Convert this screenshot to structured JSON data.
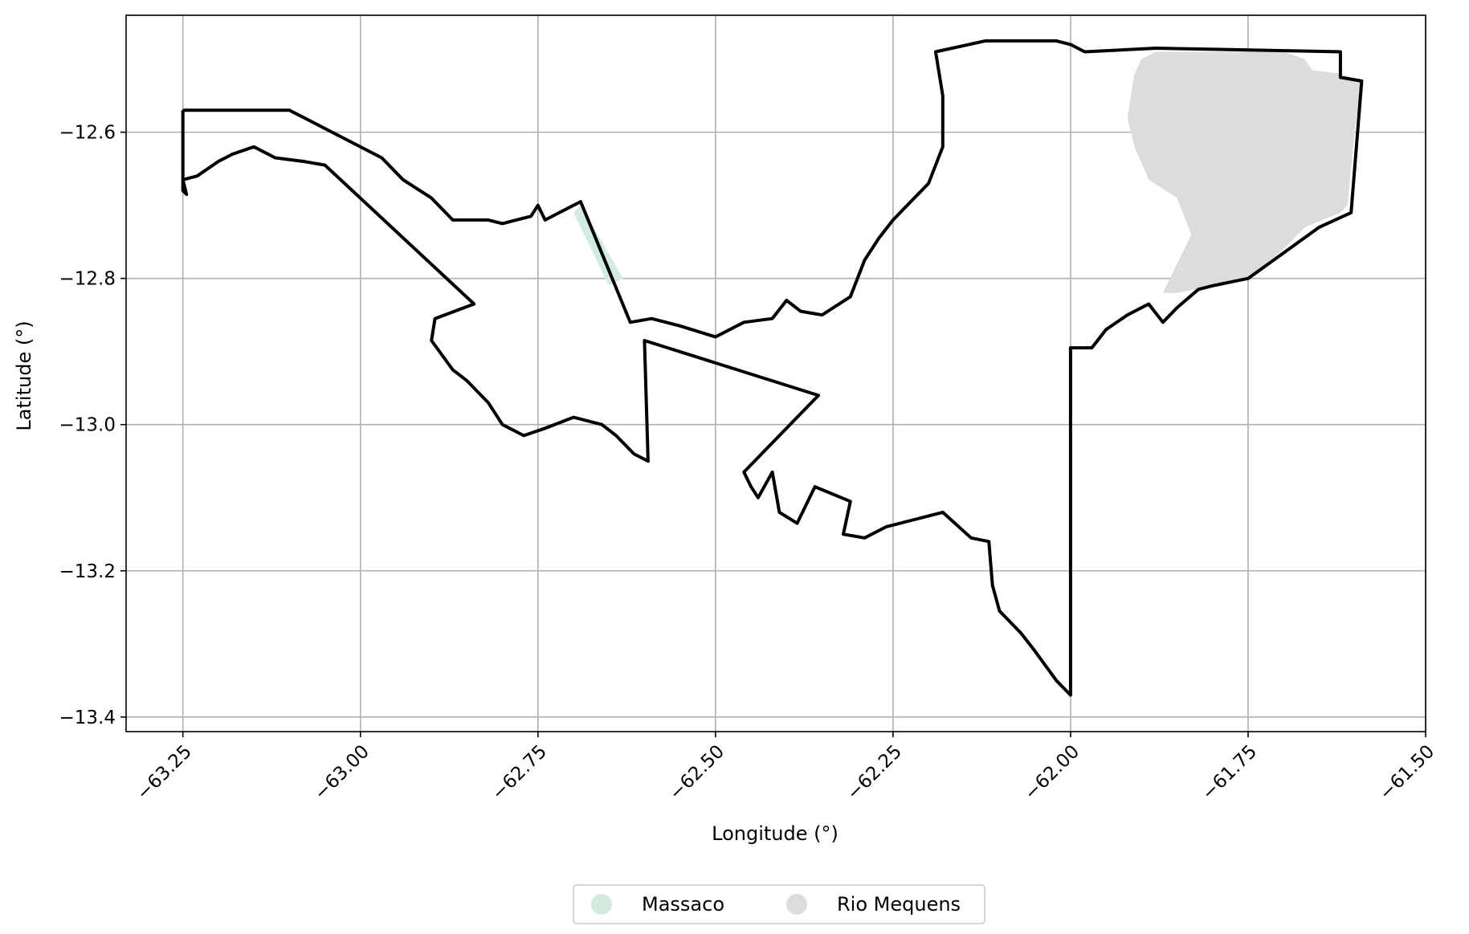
{
  "chart_data": {
    "type": "map",
    "xlabel": "Longitude (°)",
    "ylabel": "Latitude (°)",
    "xlim": [
      -63.33,
      -61.5
    ],
    "ylim": [
      -13.42,
      -12.44
    ],
    "x_ticks": [
      -63.25,
      -63.0,
      -62.75,
      -62.5,
      -62.25,
      -62.0,
      -61.75,
      -61.5
    ],
    "x_tick_labels": [
      "−63.25",
      "−63.00",
      "−62.75",
      "−62.50",
      "−62.25",
      "−62.00",
      "−61.75",
      "−61.50"
    ],
    "y_ticks": [
      -12.6,
      -12.8,
      -13.0,
      -13.2,
      -13.4
    ],
    "y_tick_labels": [
      "−12.6",
      "−12.8",
      "−13.0",
      "−13.2",
      "−13.4"
    ],
    "grid": true,
    "legend_position": "bottom-center",
    "legend": [
      {
        "label": "Massaco",
        "color": "#d3eadf"
      },
      {
        "label": "Rio Mequens",
        "color": "#dcdcdc"
      }
    ],
    "regions": [
      {
        "name": "Massaco",
        "color": "#d3eadf",
        "coords": [
          [
            -62.69,
            -12.7
          ],
          [
            -62.66,
            -12.75
          ],
          [
            -62.63,
            -12.8
          ],
          [
            -62.65,
            -12.81
          ],
          [
            -62.68,
            -12.75
          ],
          [
            -62.7,
            -12.71
          ]
        ]
      },
      {
        "name": "Rio Mequens",
        "color": "#dcdcdc",
        "coords": [
          [
            -61.88,
            -12.49
          ],
          [
            -61.8,
            -12.49
          ],
          [
            -61.7,
            -12.49
          ],
          [
            -61.67,
            -12.5
          ],
          [
            -61.66,
            -12.515
          ],
          [
            -61.62,
            -12.52
          ],
          [
            -61.59,
            -12.53
          ],
          [
            -61.6,
            -12.6
          ],
          [
            -61.61,
            -12.7
          ],
          [
            -61.62,
            -12.71
          ],
          [
            -61.67,
            -12.73
          ],
          [
            -61.7,
            -12.76
          ],
          [
            -61.75,
            -12.8
          ],
          [
            -61.8,
            -12.81
          ],
          [
            -61.85,
            -12.82
          ],
          [
            -61.87,
            -12.82
          ],
          [
            -61.85,
            -12.78
          ],
          [
            -61.83,
            -12.74
          ],
          [
            -61.85,
            -12.69
          ],
          [
            -61.89,
            -12.665
          ],
          [
            -61.91,
            -12.62
          ],
          [
            -61.92,
            -12.58
          ],
          [
            -61.91,
            -12.52
          ],
          [
            -61.9,
            -12.5
          ]
        ]
      }
    ],
    "outline": [
      [
        -63.25,
        -12.57
      ],
      [
        -63.1,
        -12.57
      ],
      [
        -62.97,
        -12.635
      ],
      [
        -62.94,
        -12.665
      ],
      [
        -62.9,
        -12.69
      ],
      [
        -62.87,
        -12.72
      ],
      [
        -62.82,
        -12.72
      ],
      [
        -62.8,
        -12.725
      ],
      [
        -62.76,
        -12.715
      ],
      [
        -62.75,
        -12.7
      ],
      [
        -62.74,
        -12.72
      ],
      [
        -62.69,
        -12.695
      ],
      [
        -62.62,
        -12.86
      ],
      [
        -62.59,
        -12.855
      ],
      [
        -62.55,
        -12.865
      ],
      [
        -62.5,
        -12.88
      ],
      [
        -62.46,
        -12.86
      ],
      [
        -62.42,
        -12.855
      ],
      [
        -62.4,
        -12.83
      ],
      [
        -62.38,
        -12.845
      ],
      [
        -62.35,
        -12.85
      ],
      [
        -62.31,
        -12.825
      ],
      [
        -62.29,
        -12.775
      ],
      [
        -62.27,
        -12.745
      ],
      [
        -62.25,
        -12.72
      ],
      [
        -62.2,
        -12.67
      ],
      [
        -62.18,
        -12.62
      ],
      [
        -62.18,
        -12.55
      ],
      [
        -62.19,
        -12.49
      ],
      [
        -62.12,
        -12.475
      ],
      [
        -62.02,
        -12.475
      ],
      [
        -62.0,
        -12.48
      ],
      [
        -61.98,
        -12.49
      ],
      [
        -61.88,
        -12.485
      ],
      [
        -61.62,
        -12.49
      ],
      [
        -61.62,
        -12.525
      ],
      [
        -61.59,
        -12.53
      ],
      [
        -61.605,
        -12.71
      ],
      [
        -61.65,
        -12.73
      ],
      [
        -61.75,
        -12.8
      ],
      [
        -61.8,
        -12.81
      ],
      [
        -61.82,
        -12.815
      ],
      [
        -61.85,
        -12.84
      ],
      [
        -61.87,
        -12.86
      ],
      [
        -61.89,
        -12.835
      ],
      [
        -61.92,
        -12.85
      ],
      [
        -61.95,
        -12.87
      ],
      [
        -61.97,
        -12.895
      ],
      [
        -62.0,
        -12.895
      ],
      [
        -62.0,
        -13.37
      ],
      [
        -62.02,
        -13.35
      ],
      [
        -62.05,
        -13.31
      ],
      [
        -62.07,
        -13.285
      ],
      [
        -62.1,
        -13.255
      ],
      [
        -62.11,
        -13.22
      ],
      [
        -62.115,
        -13.16
      ],
      [
        -62.14,
        -13.155
      ],
      [
        -62.18,
        -13.12
      ],
      [
        -62.22,
        -13.13
      ],
      [
        -62.26,
        -13.14
      ],
      [
        -62.29,
        -13.155
      ],
      [
        -62.32,
        -13.15
      ],
      [
        -62.31,
        -13.105
      ],
      [
        -62.36,
        -13.085
      ],
      [
        -62.385,
        -13.135
      ],
      [
        -62.41,
        -13.12
      ],
      [
        -62.42,
        -13.065
      ],
      [
        -62.44,
        -13.1
      ],
      [
        -62.45,
        -13.085
      ],
      [
        -62.46,
        -13.065
      ],
      [
        -62.355,
        -12.96
      ],
      [
        -62.6,
        -12.885
      ],
      [
        -62.595,
        -13.05
      ],
      [
        -62.615,
        -13.04
      ],
      [
        -62.64,
        -13.015
      ],
      [
        -62.66,
        -13.0
      ],
      [
        -62.7,
        -12.99
      ],
      [
        -62.74,
        -13.005
      ],
      [
        -62.77,
        -13.015
      ],
      [
        -62.8,
        -13.0
      ],
      [
        -62.82,
        -12.97
      ],
      [
        -62.85,
        -12.94
      ],
      [
        -62.87,
        -12.925
      ],
      [
        -62.9,
        -12.885
      ],
      [
        -62.895,
        -12.855
      ],
      [
        -62.84,
        -12.835
      ],
      [
        -63.05,
        -12.645
      ],
      [
        -63.08,
        -12.64
      ],
      [
        -63.12,
        -12.635
      ],
      [
        -63.15,
        -12.62
      ],
      [
        -63.18,
        -12.63
      ],
      [
        -63.2,
        -12.64
      ],
      [
        -63.23,
        -12.66
      ],
      [
        -63.25,
        -12.665
      ],
      [
        -63.245,
        -12.685
      ],
      [
        -63.25,
        -12.68
      ],
      [
        -63.25,
        -12.57
      ]
    ]
  }
}
